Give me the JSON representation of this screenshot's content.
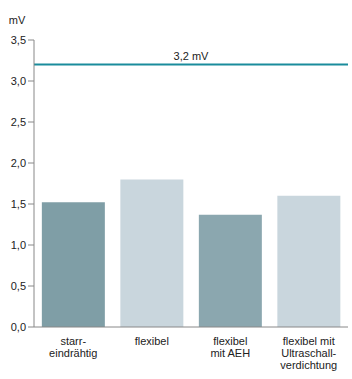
{
  "chart_data": {
    "type": "bar",
    "ylabel": "mV",
    "categories": [
      "starr-\neindrähtig",
      "flexibel",
      "flexibel\nmit AEH",
      "flexibel mit\nUltraschall-\nverdichtung"
    ],
    "values": [
      1.52,
      1.8,
      1.37,
      1.6
    ],
    "colors": [
      "#7f9ea6",
      "#c9d6dd",
      "#8ba7af",
      "#c9d6dd"
    ],
    "ylim": [
      0,
      3.5
    ],
    "yticks": [
      {
        "value": 0,
        "label": "0,0"
      },
      {
        "value": 0.5,
        "label": "0,5"
      },
      {
        "value": 1,
        "label": "1,0"
      },
      {
        "value": 1.5,
        "label": "1,5"
      },
      {
        "value": 2,
        "label": "2,0"
      },
      {
        "value": 2.5,
        "label": "2,5"
      },
      {
        "value": 3,
        "label": "3,0"
      },
      {
        "value": 3.5,
        "label": "3,5"
      }
    ],
    "annotations": [
      {
        "y": 3.2,
        "text": "3,2 mV",
        "color": "#1a8c9c"
      }
    ],
    "grid": false
  }
}
